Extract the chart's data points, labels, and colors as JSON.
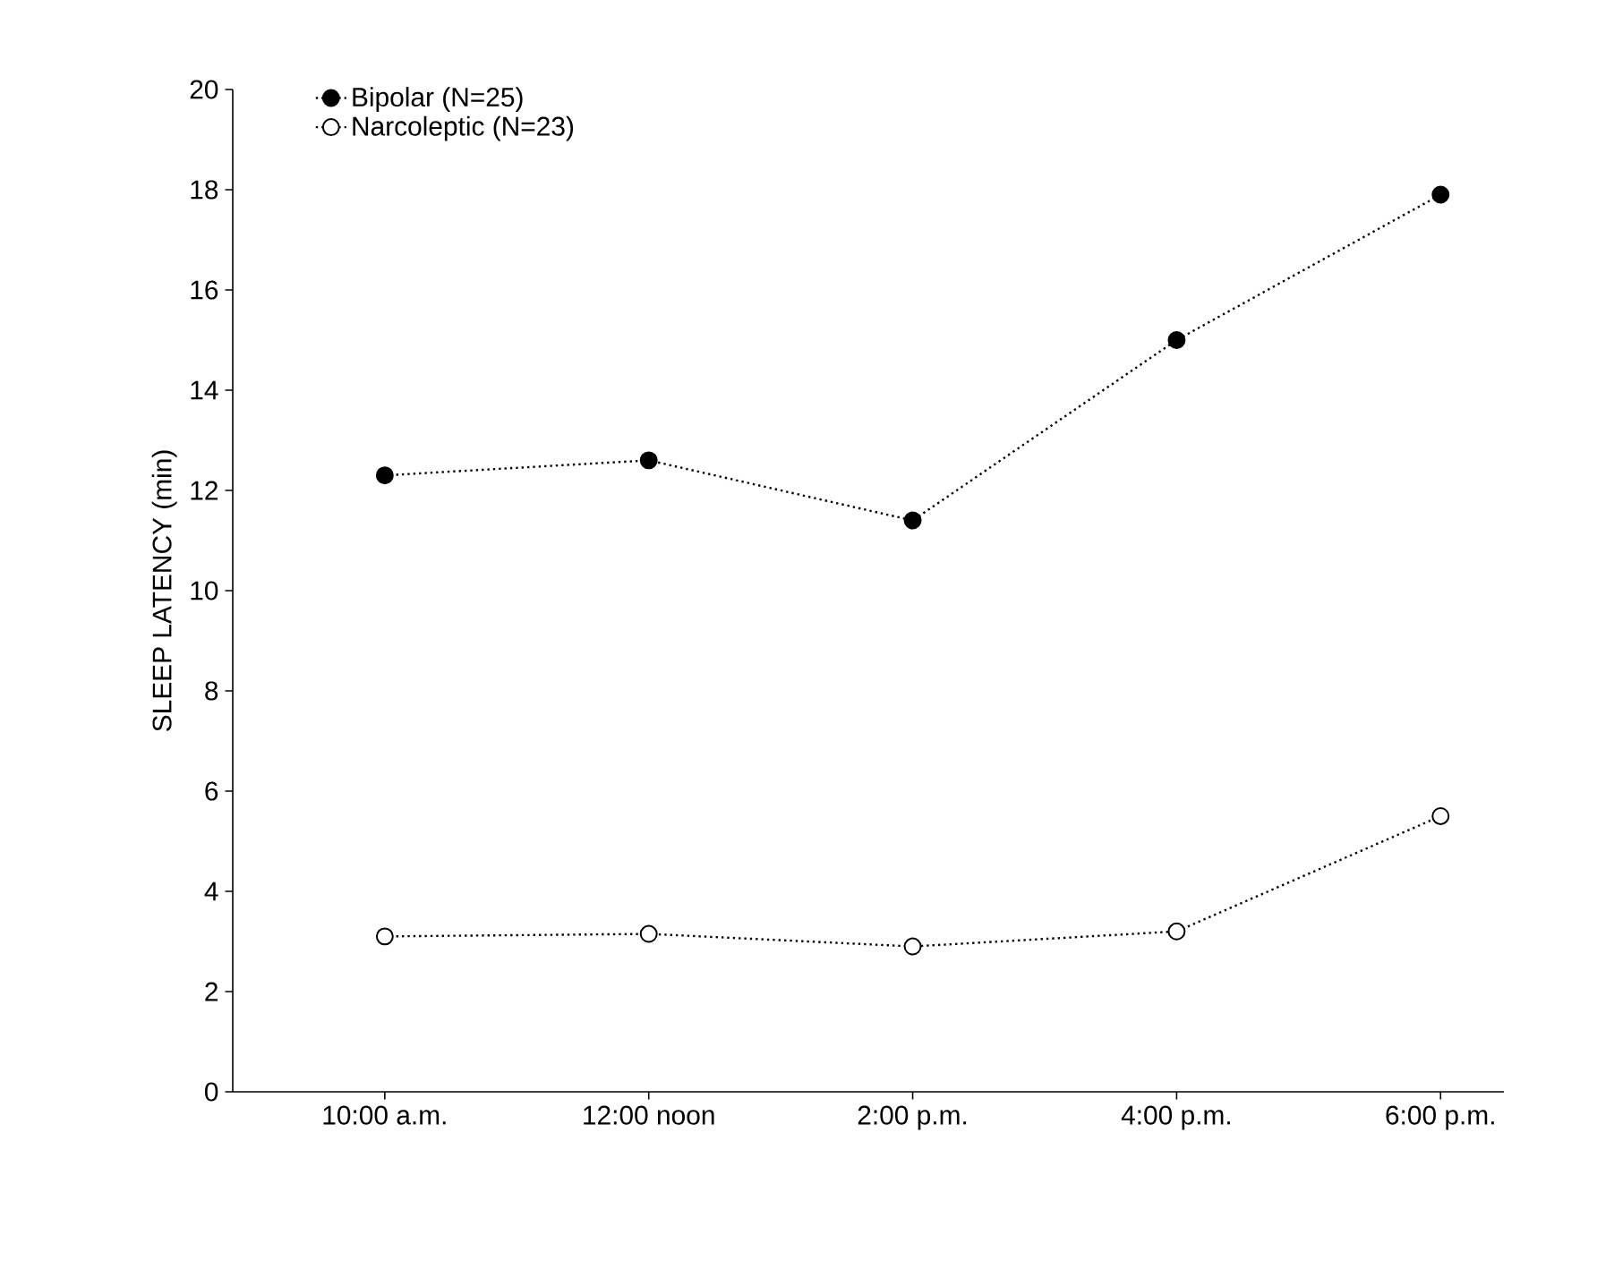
{
  "chart_data": {
    "type": "line",
    "ylabel": "SLEEP LATENCY (min)",
    "categories": [
      "10:00 a.m.",
      "12:00 noon",
      "2:00 p.m.",
      "4:00 p.m.",
      "6:00 p.m."
    ],
    "series": [
      {
        "name": "Bipolar (N=25)",
        "color": "#000000",
        "marker": "circle",
        "values": [
          12.3,
          12.6,
          11.4,
          15.0,
          17.9
        ]
      },
      {
        "name": "Narcoleptic (N=23)",
        "color": "#000000",
        "marker": "circle",
        "values": [
          3.1,
          3.15,
          2.9,
          3.2,
          5.5
        ]
      }
    ],
    "ylim": [
      0,
      20
    ],
    "yticks": [
      0,
      2,
      4,
      6,
      8,
      10,
      12,
      14,
      16,
      18,
      20
    ],
    "line_style": "dotted",
    "legend": "top left",
    "grid": false
  }
}
